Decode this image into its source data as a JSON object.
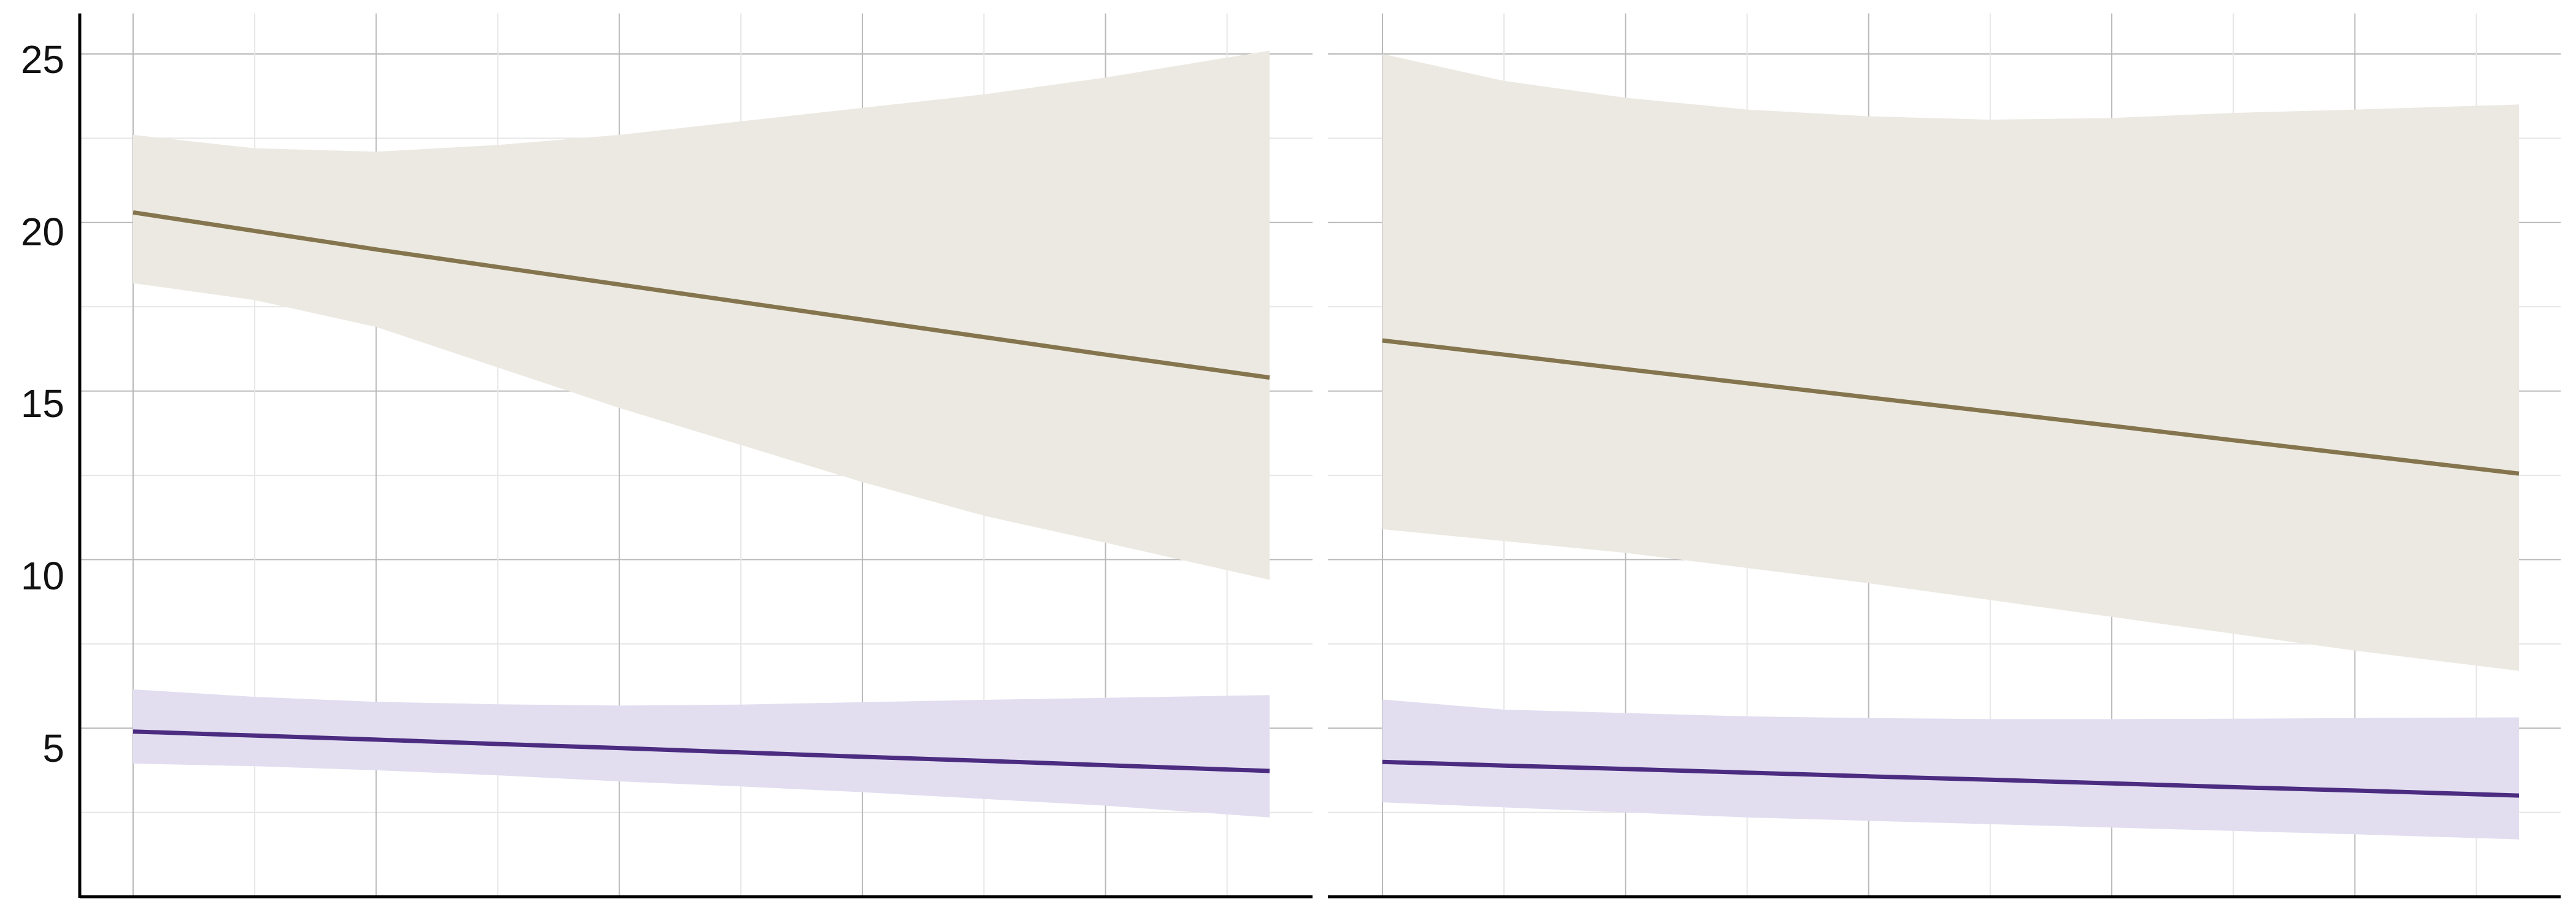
{
  "chart_data": {
    "type": "line",
    "y_ticks": [
      "5",
      "10",
      "15",
      "20",
      "25"
    ],
    "ylim": [
      0,
      26.2
    ],
    "xlim": [
      0,
      9.45
    ],
    "grid": true,
    "panels": [
      {
        "series": [
          {
            "color": "#85754e",
            "band_color": "#ece9e2",
            "x": [
              0,
              1,
              2,
              3,
              4,
              5,
              6,
              7,
              8,
              9.35
            ],
            "y": [
              20.3,
              19.75,
              19.2,
              18.68,
              18.16,
              17.64,
              17.12,
              16.6,
              16.08,
              15.4
            ],
            "lower": [
              18.2,
              17.7,
              16.9,
              15.7,
              14.5,
              13.4,
              12.3,
              11.3,
              10.5,
              9.4
            ],
            "upper": [
              22.6,
              22.2,
              22.1,
              22.3,
              22.6,
              23.0,
              23.4,
              23.8,
              24.3,
              25.1
            ]
          },
          {
            "color": "#4b2c80",
            "band_color": "#e2def0",
            "x": [
              0,
              1,
              2,
              3,
              4,
              5,
              6,
              7,
              8,
              9.35
            ],
            "y": [
              4.9,
              4.78,
              4.66,
              4.53,
              4.41,
              4.28,
              4.15,
              4.03,
              3.9,
              3.73
            ],
            "lower": [
              3.95,
              3.87,
              3.75,
              3.6,
              3.42,
              3.27,
              3.1,
              2.9,
              2.7,
              2.35
            ],
            "upper": [
              6.15,
              5.93,
              5.78,
              5.71,
              5.67,
              5.7,
              5.77,
              5.84,
              5.9,
              5.98
            ]
          }
        ]
      },
      {
        "series": [
          {
            "color": "#85754e",
            "band_color": "#ece9e2",
            "x": [
              0,
              1,
              2,
              3,
              4,
              5,
              6,
              7,
              8,
              9.35
            ],
            "y": [
              16.5,
              16.08,
              15.65,
              15.23,
              14.81,
              14.39,
              13.97,
              13.54,
              13.12,
              12.55
            ],
            "lower": [
              10.9,
              10.55,
              10.2,
              9.75,
              9.3,
              8.8,
              8.3,
              7.8,
              7.3,
              6.7
            ],
            "upper": [
              25.0,
              24.2,
              23.7,
              23.35,
              23.15,
              23.05,
              23.1,
              23.25,
              23.35,
              23.5
            ]
          },
          {
            "color": "#4b2c80",
            "band_color": "#e2def0",
            "x": [
              0,
              1,
              2,
              3,
              4,
              5,
              6,
              7,
              8,
              9.35
            ],
            "y": [
              4.0,
              3.89,
              3.79,
              3.68,
              3.57,
              3.47,
              3.36,
              3.25,
              3.15,
              3.0
            ],
            "lower": [
              2.8,
              2.65,
              2.5,
              2.35,
              2.25,
              2.15,
              2.05,
              1.95,
              1.85,
              1.7
            ],
            "upper": [
              5.85,
              5.55,
              5.45,
              5.35,
              5.3,
              5.27,
              5.27,
              5.28,
              5.3,
              5.32
            ]
          }
        ]
      }
    ]
  }
}
